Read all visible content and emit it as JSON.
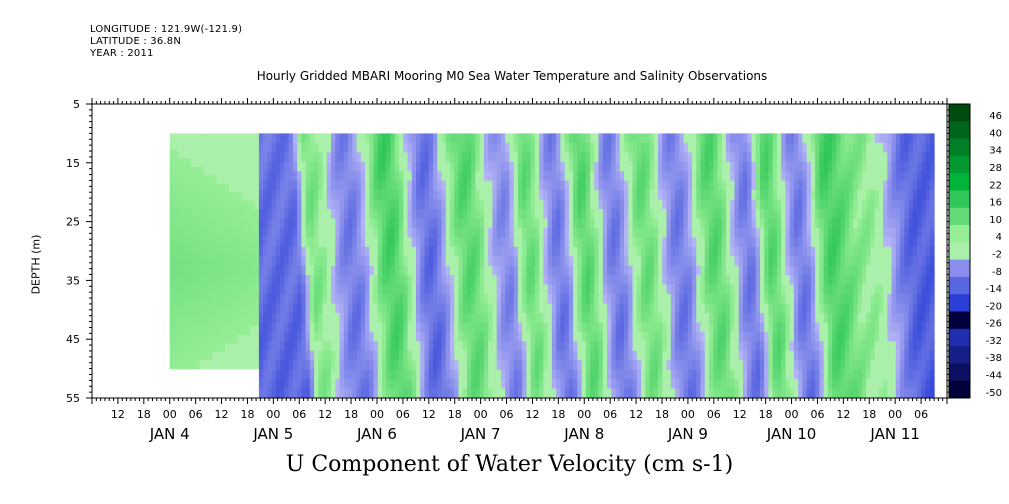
{
  "header": {
    "longitude": "LONGITUDE : 121.9W(-121.9)",
    "latitude": "LATITUDE : 36.8N",
    "year": "YEAR : 2011",
    "title": "Hourly Gridded MBARI Mooring M0 Sea Water Temperature and Salinity Observations"
  },
  "chart_data": {
    "type": "heatmap",
    "title": "Hourly Gridded MBARI Mooring M0 Sea Water Temperature and Salinity Observations",
    "xlabel": "U Component of Water Velocity (cm s-1)",
    "ylabel": "DEPTH (m)",
    "x_range": [
      "2011-01-03T06:00",
      "2011-01-11T12:00"
    ],
    "y_range": [
      5,
      55
    ],
    "y_inverted": true,
    "y_ticks": [
      5,
      15,
      25,
      35,
      45,
      55
    ],
    "hour_tick_labels": [
      "12",
      "18",
      "00",
      "06",
      "12",
      "18",
      "00",
      "06",
      "12",
      "18",
      "00",
      "06",
      "12",
      "18",
      "00",
      "06",
      "12",
      "18",
      "00",
      "06",
      "12",
      "18",
      "00",
      "06",
      "12",
      "18",
      "00",
      "06",
      "12",
      "18",
      "00",
      "06"
    ],
    "hour_tick_times": [
      "2011-01-03T12:00",
      "2011-01-03T18:00",
      "2011-01-04T00:00",
      "2011-01-04T06:00",
      "2011-01-04T12:00",
      "2011-01-04T18:00",
      "2011-01-05T00:00",
      "2011-01-05T06:00",
      "2011-01-05T12:00",
      "2011-01-05T18:00",
      "2011-01-06T00:00",
      "2011-01-06T06:00",
      "2011-01-06T12:00",
      "2011-01-06T18:00",
      "2011-01-07T00:00",
      "2011-01-07T06:00",
      "2011-01-07T12:00",
      "2011-01-07T18:00",
      "2011-01-08T00:00",
      "2011-01-08T06:00",
      "2011-01-08T12:00",
      "2011-01-08T18:00",
      "2011-01-09T00:00",
      "2011-01-09T06:00",
      "2011-01-09T12:00",
      "2011-01-09T18:00",
      "2011-01-10T00:00",
      "2011-01-10T06:00",
      "2011-01-10T12:00",
      "2011-01-10T18:00",
      "2011-01-11T00:00",
      "2011-01-11T06:00"
    ],
    "date_labels": [
      {
        "label": "JAN  4",
        "time": "2011-01-04T00:00"
      },
      {
        "label": "JAN  5",
        "time": "2011-01-05T00:00"
      },
      {
        "label": "JAN  6",
        "time": "2011-01-06T00:00"
      },
      {
        "label": "JAN  7",
        "time": "2011-01-07T00:00"
      },
      {
        "label": "JAN  8",
        "time": "2011-01-08T00:00"
      },
      {
        "label": "JAN  9",
        "time": "2011-01-09T00:00"
      },
      {
        "label": "JAN 10",
        "time": "2011-01-10T00:00"
      },
      {
        "label": "JAN 11",
        "time": "2011-01-11T00:00"
      }
    ],
    "colorbar": {
      "levels": [
        -50,
        -44,
        -38,
        -32,
        -26,
        -20,
        -14,
        -8,
        -2,
        4,
        10,
        16,
        22,
        28,
        34,
        40,
        46
      ],
      "labels": [
        "46",
        "40",
        "34",
        "28",
        "22",
        "16",
        "10",
        "4",
        "-2",
        "-8",
        "-14",
        "-20",
        "-26",
        "-32",
        "-38",
        "-44",
        "-50"
      ],
      "negative_color": "#2b3fd6",
      "positive_color": "#00b43c",
      "min_color": "#00003a",
      "max_color": "#004a10"
    },
    "data_coverage": {
      "time_start": "2011-01-04T00:00",
      "time_end": "2011-01-11T09:00",
      "depth_top": 10,
      "depth_bottom_early": 50,
      "depth_bottom_late": 55
    },
    "value_range": [
      -20,
      16
    ],
    "velocity_bands": [
      {
        "time": "2011-01-05T05:00",
        "value": -12
      },
      {
        "time": "2011-01-05T09:00",
        "value": 8
      },
      {
        "time": "2011-01-05T18:00",
        "value": -10
      },
      {
        "time": "2011-01-06T03:00",
        "value": 14
      },
      {
        "time": "2011-01-06T12:00",
        "value": -12
      },
      {
        "time": "2011-01-06T21:00",
        "value": 12
      },
      {
        "time": "2011-01-07T06:00",
        "value": -8
      },
      {
        "time": "2011-01-07T11:00",
        "value": 10
      },
      {
        "time": "2011-01-07T18:00",
        "value": -10
      },
      {
        "time": "2011-01-08T00:00",
        "value": 12
      },
      {
        "time": "2011-01-08T07:00",
        "value": -10
      },
      {
        "time": "2011-01-08T14:00",
        "value": 10
      },
      {
        "time": "2011-01-08T22:00",
        "value": -10
      },
      {
        "time": "2011-01-09T06:00",
        "value": 12
      },
      {
        "time": "2011-01-09T14:00",
        "value": -10
      },
      {
        "time": "2011-01-09T19:00",
        "value": 12
      },
      {
        "time": "2011-01-10T02:00",
        "value": -10
      },
      {
        "time": "2011-01-10T09:00",
        "value": 14
      },
      {
        "time": "2011-01-10T17:00",
        "value": 6
      },
      {
        "time": "2011-01-11T05:00",
        "value": -14
      }
    ]
  }
}
